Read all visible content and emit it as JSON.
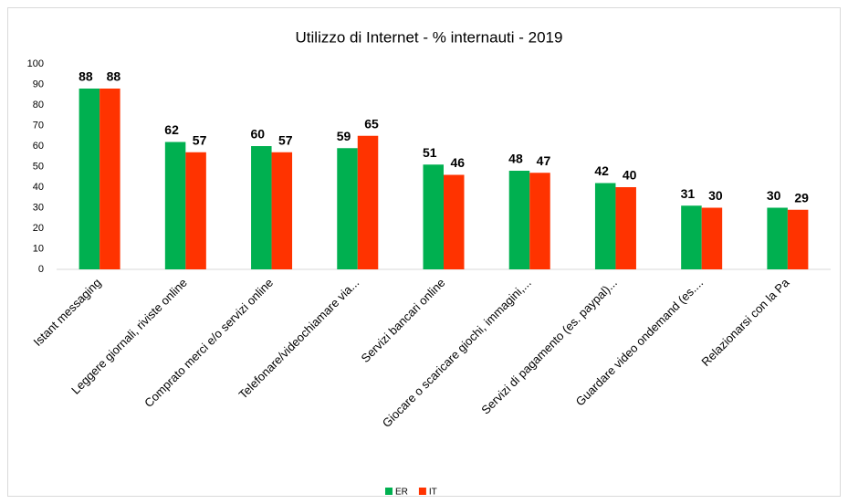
{
  "chart_data": {
    "type": "bar",
    "title": "Utilizzo di Internet - % internauti - 2019",
    "categories": [
      "Istant messaging",
      "Leggere giornali, riviste online",
      "Comprato merci e/o servizi online",
      "Telefonare/videochiamare via...",
      "Servizi bancari online",
      "Giocare o scaricare giochi, immagini,...",
      "Servizi di pagamento (es. paypal)...",
      "Guardare video ondemand (es....",
      "Relazionarsi con la Pa"
    ],
    "series": [
      {
        "name": "ER",
        "color": "#00b050",
        "values": [
          88,
          62,
          60,
          59,
          51,
          48,
          42,
          31,
          30
        ]
      },
      {
        "name": "IT",
        "color": "#ff3300",
        "values": [
          88,
          57,
          57,
          65,
          46,
          47,
          40,
          30,
          29
        ]
      }
    ],
    "ylim": [
      0,
      100
    ],
    "yticks": [
      0,
      10,
      20,
      30,
      40,
      50,
      60,
      70,
      80,
      90,
      100
    ],
    "grid": false,
    "legend": "bottom"
  }
}
